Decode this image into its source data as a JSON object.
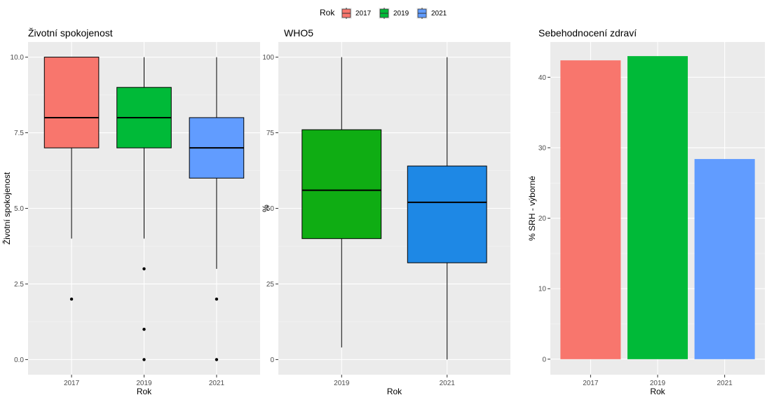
{
  "legend": {
    "title": "Rok",
    "entries": [
      {
        "label": "2017",
        "color": "#f8766d"
      },
      {
        "label": "2019",
        "color": "#00ba38"
      },
      {
        "label": "2021",
        "color": "#619cff"
      }
    ]
  },
  "chart_data": [
    {
      "type": "box",
      "title": "Životní spokojenost",
      "xlabel": "Rok",
      "ylabel": "Životní spokojenost",
      "ylim": [
        -0.5,
        10.5
      ],
      "yticks": [
        0.0,
        2.5,
        5.0,
        7.5,
        10.0
      ],
      "ytick_labels": [
        "0.0",
        "2.5",
        "5.0",
        "7.5",
        "10.0"
      ],
      "boxes": [
        {
          "category": "2017",
          "color": "#f8766d",
          "whisker_low": 4,
          "q1": 7,
          "median": 8,
          "q3": 10,
          "whisker_high": 10,
          "outliers": [
            2
          ]
        },
        {
          "category": "2019",
          "color": "#00ba38",
          "whisker_low": 4,
          "q1": 7,
          "median": 8,
          "q3": 9,
          "whisker_high": 10,
          "outliers": [
            3,
            1,
            0
          ]
        },
        {
          "category": "2021",
          "color": "#619cff",
          "whisker_low": 3,
          "q1": 6,
          "median": 7,
          "q3": 8,
          "whisker_high": 10,
          "outliers": [
            2,
            0
          ]
        }
      ]
    },
    {
      "type": "box",
      "title": "WHO5",
      "xlabel": "Rok",
      "ylabel": "%",
      "ylim": [
        -5,
        105
      ],
      "yticks": [
        0,
        25,
        50,
        75,
        100
      ],
      "ytick_labels": [
        "0",
        "25",
        "50",
        "75",
        "100"
      ],
      "boxes": [
        {
          "category": "2019",
          "color": "#0fad13",
          "whisker_low": 4,
          "q1": 40,
          "median": 56,
          "q3": 76,
          "whisker_high": 100,
          "outliers": []
        },
        {
          "category": "2021",
          "color": "#1e88e5",
          "whisker_low": 0,
          "q1": 32,
          "median": 52,
          "q3": 64,
          "whisker_high": 100,
          "outliers": []
        }
      ]
    },
    {
      "type": "bar",
      "title": "Sebehodnocení zdraví",
      "xlabel": "Rok",
      "ylabel": "% SRH - výborné",
      "ylim": [
        -2.2,
        45
      ],
      "yticks": [
        0,
        10,
        20,
        30,
        40
      ],
      "ytick_labels": [
        "0",
        "10",
        "20",
        "30",
        "40"
      ],
      "categories": [
        "2017",
        "2019",
        "2021"
      ],
      "values": [
        42.4,
        43.0,
        28.4
      ],
      "colors": [
        "#f8766d",
        "#00ba38",
        "#619cff"
      ]
    }
  ]
}
